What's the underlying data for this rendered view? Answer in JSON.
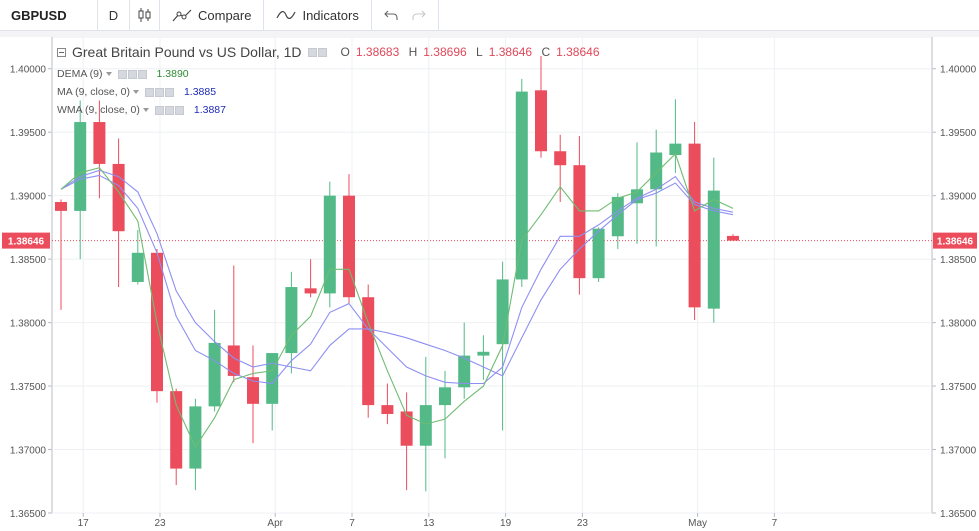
{
  "toolbar": {
    "symbol": "GBPUSD",
    "interval": "D",
    "compare_label": "Compare",
    "indicators_label": "Indicators",
    "icons": [
      "candles-icon",
      "compare-icon",
      "indicators-icon",
      "undo-icon",
      "redo-icon"
    ]
  },
  "legend": {
    "title": "Great Britain Pound vs US Dollar, 1D",
    "ohlc": {
      "o_label": "O",
      "o": "1.38683",
      "h_label": "H",
      "h": "1.38696",
      "l_label": "L",
      "l": "1.38646",
      "c_label": "C",
      "c": "1.38646"
    },
    "indicators": [
      {
        "label": "DEMA (9)",
        "value": "1.3890",
        "color": "#2e8b34"
      },
      {
        "label": "MA (9, close, 0)",
        "value": "1.3885",
        "color": "#1d2ab5"
      },
      {
        "label": "WMA (9, close, 0)",
        "value": "1.3887",
        "color": "#1d2ab5"
      }
    ]
  },
  "chart_data": {
    "type": "candlestick",
    "title": "Great Britain Pound vs US Dollar, 1D",
    "ylim": [
      1.365,
      1.4025
    ],
    "y_ticks": [
      "1.40000",
      "1.39500",
      "1.39000",
      "1.38500",
      "1.38000",
      "1.37500",
      "1.37000",
      "1.36500"
    ],
    "x_ticks": [
      {
        "i": 1,
        "label": "17"
      },
      {
        "i": 5,
        "label": "23"
      },
      {
        "i": 11,
        "label": "Apr"
      },
      {
        "i": 15,
        "label": "7"
      },
      {
        "i": 19,
        "label": "13"
      },
      {
        "i": 23,
        "label": "19"
      },
      {
        "i": 27,
        "label": "23"
      },
      {
        "i": 33,
        "label": "May"
      },
      {
        "i": 37,
        "label": "7"
      }
    ],
    "last_price": "1.38646",
    "colors": {
      "up": "#53b987",
      "down": "#eb4d5c",
      "dema": "#6fbd72",
      "ma": "#8e8ff2",
      "wma": "#8e8ff2",
      "price_line": "#eb4d5c"
    },
    "candles": [
      {
        "o": 1.3895,
        "h": 1.3897,
        "l": 1.381,
        "c": 1.3888
      },
      {
        "o": 1.3888,
        "h": 1.3975,
        "l": 1.385,
        "c": 1.3958
      },
      {
        "o": 1.3958,
        "h": 1.3975,
        "l": 1.3898,
        "c": 1.3925
      },
      {
        "o": 1.3925,
        "h": 1.3945,
        "l": 1.3828,
        "c": 1.3872
      },
      {
        "o": 1.3832,
        "h": 1.3873,
        "l": 1.383,
        "c": 1.3855
      },
      {
        "o": 1.3855,
        "h": 1.3858,
        "l": 1.3737,
        "c": 1.3746
      },
      {
        "o": 1.3746,
        "h": 1.3748,
        "l": 1.3672,
        "c": 1.3685
      },
      {
        "o": 1.3685,
        "h": 1.374,
        "l": 1.3668,
        "c": 1.3734
      },
      {
        "o": 1.3734,
        "h": 1.381,
        "l": 1.373,
        "c": 1.3784
      },
      {
        "o": 1.3782,
        "h": 1.3845,
        "l": 1.3753,
        "c": 1.3758
      },
      {
        "o": 1.3757,
        "h": 1.3782,
        "l": 1.3705,
        "c": 1.3736
      },
      {
        "o": 1.3736,
        "h": 1.3776,
        "l": 1.3715,
        "c": 1.3776
      },
      {
        "o": 1.3776,
        "h": 1.384,
        "l": 1.376,
        "c": 1.3828
      },
      {
        "o": 1.3827,
        "h": 1.385,
        "l": 1.382,
        "c": 1.3823
      },
      {
        "o": 1.3823,
        "h": 1.3911,
        "l": 1.3812,
        "c": 1.39
      },
      {
        "o": 1.39,
        "h": 1.3917,
        "l": 1.3815,
        "c": 1.382
      },
      {
        "o": 1.382,
        "h": 1.383,
        "l": 1.3725,
        "c": 1.3735
      },
      {
        "o": 1.3735,
        "h": 1.3752,
        "l": 1.372,
        "c": 1.3728
      },
      {
        "o": 1.373,
        "h": 1.3745,
        "l": 1.3668,
        "c": 1.3703
      },
      {
        "o": 1.3703,
        "h": 1.3773,
        "l": 1.3667,
        "c": 1.3735
      },
      {
        "o": 1.3735,
        "h": 1.3762,
        "l": 1.3693,
        "c": 1.3749
      },
      {
        "o": 1.3749,
        "h": 1.38,
        "l": 1.374,
        "c": 1.3774
      },
      {
        "o": 1.3774,
        "h": 1.379,
        "l": 1.3755,
        "c": 1.3777
      },
      {
        "o": 1.3783,
        "h": 1.3848,
        "l": 1.3715,
        "c": 1.3834
      },
      {
        "o": 1.3834,
        "h": 1.3992,
        "l": 1.3828,
        "c": 1.3982
      },
      {
        "o": 1.3983,
        "h": 1.401,
        "l": 1.393,
        "c": 1.3935
      },
      {
        "o": 1.3935,
        "h": 1.3948,
        "l": 1.3895,
        "c": 1.3924
      },
      {
        "o": 1.3924,
        "h": 1.3947,
        "l": 1.3822,
        "c": 1.3835
      },
      {
        "o": 1.3835,
        "h": 1.3875,
        "l": 1.3832,
        "c": 1.3874
      },
      {
        "o": 1.3868,
        "h": 1.3902,
        "l": 1.3858,
        "c": 1.3899
      },
      {
        "o": 1.3894,
        "h": 1.3942,
        "l": 1.3862,
        "c": 1.3905
      },
      {
        "o": 1.3905,
        "h": 1.3952,
        "l": 1.386,
        "c": 1.3934
      },
      {
        "o": 1.3932,
        "h": 1.3976,
        "l": 1.3918,
        "c": 1.3941
      },
      {
        "o": 1.3941,
        "h": 1.3958,
        "l": 1.3802,
        "c": 1.3812
      },
      {
        "o": 1.3811,
        "h": 1.393,
        "l": 1.38,
        "c": 1.3904
      },
      {
        "o": 1.38683,
        "h": 1.38696,
        "l": 1.38646,
        "c": 1.38646
      }
    ],
    "dema": [
      {
        "i": 0,
        "v": 1.3905
      },
      {
        "i": 1,
        "v": 1.3918
      },
      {
        "i": 2,
        "v": 1.3922
      },
      {
        "i": 3,
        "v": 1.3903
      },
      {
        "i": 4,
        "v": 1.388
      },
      {
        "i": 5,
        "v": 1.38
      },
      {
        "i": 6,
        "v": 1.3735
      },
      {
        "i": 7,
        "v": 1.3702
      },
      {
        "i": 8,
        "v": 1.3725
      },
      {
        "i": 9,
        "v": 1.3755
      },
      {
        "i": 10,
        "v": 1.376
      },
      {
        "i": 11,
        "v": 1.3762
      },
      {
        "i": 12,
        "v": 1.379
      },
      {
        "i": 13,
        "v": 1.3805
      },
      {
        "i": 14,
        "v": 1.3842
      },
      {
        "i": 15,
        "v": 1.3842
      },
      {
        "i": 16,
        "v": 1.38
      },
      {
        "i": 17,
        "v": 1.3762
      },
      {
        "i": 18,
        "v": 1.3727
      },
      {
        "i": 19,
        "v": 1.372
      },
      {
        "i": 20,
        "v": 1.3724
      },
      {
        "i": 21,
        "v": 1.3738
      },
      {
        "i": 22,
        "v": 1.375
      },
      {
        "i": 23,
        "v": 1.3782
      },
      {
        "i": 24,
        "v": 1.3865
      },
      {
        "i": 25,
        "v": 1.3885
      },
      {
        "i": 26,
        "v": 1.3907
      },
      {
        "i": 27,
        "v": 1.3888
      },
      {
        "i": 28,
        "v": 1.3888
      },
      {
        "i": 29,
        "v": 1.3898
      },
      {
        "i": 30,
        "v": 1.3903
      },
      {
        "i": 31,
        "v": 1.3918
      },
      {
        "i": 32,
        "v": 1.3933
      },
      {
        "i": 33,
        "v": 1.3888
      },
      {
        "i": 34,
        "v": 1.3897
      },
      {
        "i": 35,
        "v": 1.389
      }
    ],
    "ma": [
      {
        "i": 0,
        "v": 1.3905
      },
      {
        "i": 1,
        "v": 1.3915
      },
      {
        "i": 2,
        "v": 1.392
      },
      {
        "i": 3,
        "v": 1.3915
      },
      {
        "i": 4,
        "v": 1.3903
      },
      {
        "i": 5,
        "v": 1.387
      },
      {
        "i": 6,
        "v": 1.3825
      },
      {
        "i": 7,
        "v": 1.38
      },
      {
        "i": 8,
        "v": 1.3785
      },
      {
        "i": 9,
        "v": 1.3772
      },
      {
        "i": 10,
        "v": 1.3765
      },
      {
        "i": 11,
        "v": 1.3768
      },
      {
        "i": 12,
        "v": 1.3765
      },
      {
        "i": 13,
        "v": 1.3762
      },
      {
        "i": 14,
        "v": 1.3782
      },
      {
        "i": 15,
        "v": 1.3795
      },
      {
        "i": 16,
        "v": 1.3795
      },
      {
        "i": 17,
        "v": 1.3792
      },
      {
        "i": 18,
        "v": 1.3788
      },
      {
        "i": 19,
        "v": 1.3783
      },
      {
        "i": 20,
        "v": 1.3778
      },
      {
        "i": 21,
        "v": 1.3772
      },
      {
        "i": 22,
        "v": 1.3765
      },
      {
        "i": 23,
        "v": 1.3758
      },
      {
        "i": 24,
        "v": 1.3788
      },
      {
        "i": 25,
        "v": 1.3818
      },
      {
        "i": 26,
        "v": 1.3842
      },
      {
        "i": 27,
        "v": 1.3858
      },
      {
        "i": 28,
        "v": 1.3872
      },
      {
        "i": 29,
        "v": 1.3885
      },
      {
        "i": 30,
        "v": 1.3897
      },
      {
        "i": 31,
        "v": 1.3902
      },
      {
        "i": 32,
        "v": 1.391
      },
      {
        "i": 33,
        "v": 1.3893
      },
      {
        "i": 34,
        "v": 1.3888
      },
      {
        "i": 35,
        "v": 1.3885
      }
    ],
    "wma": [
      {
        "i": 0,
        "v": 1.3905
      },
      {
        "i": 1,
        "v": 1.3913
      },
      {
        "i": 2,
        "v": 1.3916
      },
      {
        "i": 3,
        "v": 1.3908
      },
      {
        "i": 4,
        "v": 1.389
      },
      {
        "i": 5,
        "v": 1.3855
      },
      {
        "i": 6,
        "v": 1.3805
      },
      {
        "i": 7,
        "v": 1.3778
      },
      {
        "i": 8,
        "v": 1.377
      },
      {
        "i": 9,
        "v": 1.376
      },
      {
        "i": 10,
        "v": 1.3754
      },
      {
        "i": 11,
        "v": 1.3752
      },
      {
        "i": 12,
        "v": 1.377
      },
      {
        "i": 13,
        "v": 1.3783
      },
      {
        "i": 14,
        "v": 1.3808
      },
      {
        "i": 15,
        "v": 1.3815
      },
      {
        "i": 16,
        "v": 1.3795
      },
      {
        "i": 17,
        "v": 1.378
      },
      {
        "i": 18,
        "v": 1.3765
      },
      {
        "i": 19,
        "v": 1.3758
      },
      {
        "i": 20,
        "v": 1.3753
      },
      {
        "i": 21,
        "v": 1.3752
      },
      {
        "i": 22,
        "v": 1.3752
      },
      {
        "i": 23,
        "v": 1.3765
      },
      {
        "i": 24,
        "v": 1.3812
      },
      {
        "i": 25,
        "v": 1.3842
      },
      {
        "i": 26,
        "v": 1.3868
      },
      {
        "i": 27,
        "v": 1.3868
      },
      {
        "i": 28,
        "v": 1.3877
      },
      {
        "i": 29,
        "v": 1.3888
      },
      {
        "i": 30,
        "v": 1.3898
      },
      {
        "i": 31,
        "v": 1.3905
      },
      {
        "i": 32,
        "v": 1.3915
      },
      {
        "i": 33,
        "v": 1.3895
      },
      {
        "i": 34,
        "v": 1.389
      },
      {
        "i": 35,
        "v": 1.3887
      }
    ]
  }
}
